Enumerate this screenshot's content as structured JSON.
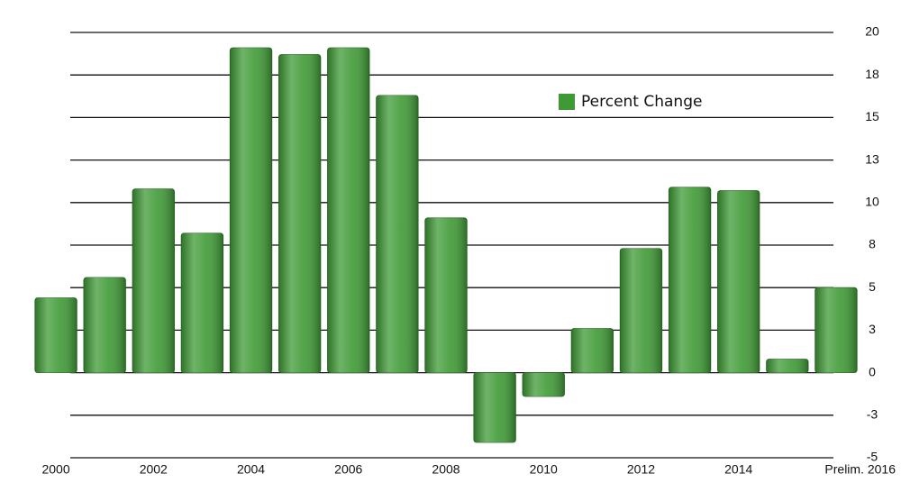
{
  "chart_data": {
    "type": "bar",
    "categories": [
      "2000",
      null,
      "2002",
      null,
      "2004",
      null,
      "2006",
      null,
      "2008",
      null,
      "2010",
      null,
      "2012",
      null,
      "2014",
      null,
      "Prelim. 2016"
    ],
    "series": [
      {
        "name": "Percent Change",
        "color": "#3f9a36",
        "values": [
          4.4,
          5.6,
          10.8,
          8.2,
          19.1,
          18.7,
          19.1,
          16.3,
          9.1,
          -4.1,
          -1.4,
          2.6,
          7.3,
          10.9,
          10.7,
          0.8,
          5.0
        ]
      }
    ],
    "ylim": [
      -5,
      20
    ],
    "yticks": [
      -5,
      {
        "value": -2.5,
        "label": "-3"
      },
      0,
      {
        "value": 2.5,
        "label": "3"
      },
      5,
      {
        "value": 7.5,
        "label": "8"
      },
      10,
      {
        "value": 12.5,
        "label": "13"
      },
      15,
      {
        "value": 17.5,
        "label": "18"
      },
      20
    ],
    "grid": true,
    "legend": "top-right"
  }
}
